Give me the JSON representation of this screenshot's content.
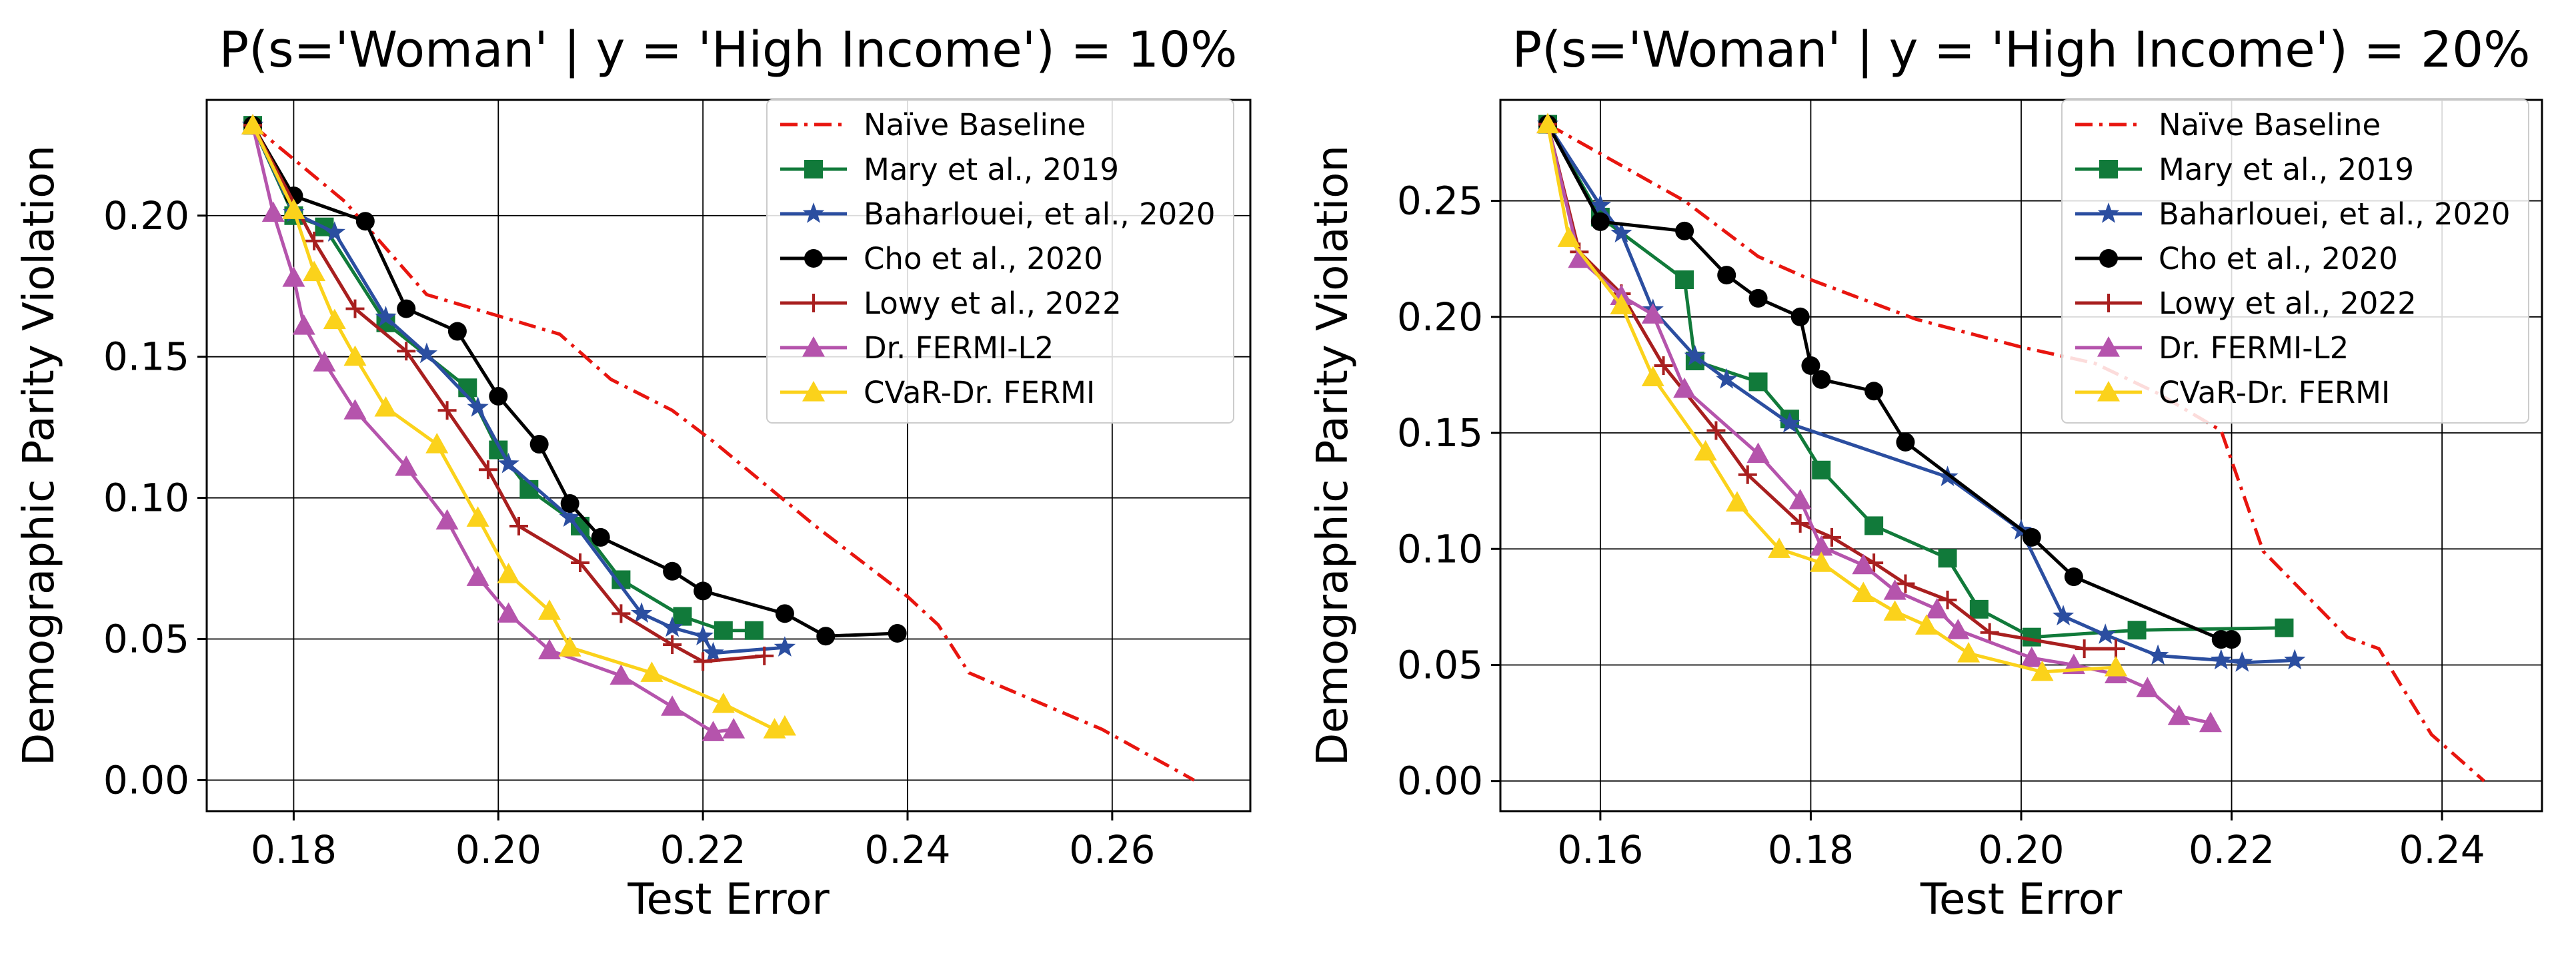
{
  "chart_data": [
    {
      "type": "line",
      "title": "P(s='Woman' | y = 'High Income') = 10%",
      "xlabel": "Test Error",
      "ylabel": "Demographic Parity Violation",
      "xlim": [
        0.1715,
        0.2735
      ],
      "ylim": [
        -0.011,
        0.241
      ],
      "xticks": [
        "0.18",
        "0.20",
        "0.22",
        "0.24",
        "0.26"
      ],
      "yticks": [
        "0.00",
        "0.05",
        "0.10",
        "0.15",
        "0.20"
      ],
      "grid": true,
      "legend_position": "top-right",
      "series": [
        {
          "name": "Naïve Baseline",
          "color": "#e8150f",
          "marker": "none",
          "dash": "dashdot",
          "points": [
            [
              0.176,
              0.232
            ],
            [
              0.185,
              0.205
            ],
            [
              0.193,
              0.172
            ],
            [
              0.206,
              0.158
            ],
            [
              0.211,
              0.142
            ],
            [
              0.217,
              0.131
            ],
            [
              0.221,
              0.12
            ],
            [
              0.231,
              0.09
            ],
            [
              0.24,
              0.065
            ],
            [
              0.243,
              0.055
            ],
            [
              0.246,
              0.038
            ],
            [
              0.259,
              0.018
            ],
            [
              0.268,
              0.0
            ]
          ]
        },
        {
          "name": "Mary et al., 2019",
          "color": "#117a3a",
          "marker": "square",
          "points": [
            [
              0.176,
              0.232
            ],
            [
              0.18,
              0.2
            ],
            [
              0.183,
              0.196
            ],
            [
              0.189,
              0.162
            ],
            [
              0.197,
              0.139
            ],
            [
              0.2,
              0.117
            ],
            [
              0.203,
              0.103
            ],
            [
              0.208,
              0.09
            ],
            [
              0.212,
              0.071
            ],
            [
              0.218,
              0.058
            ],
            [
              0.222,
              0.053
            ],
            [
              0.225,
              0.053
            ]
          ]
        },
        {
          "name": "Baharlouei, et al., 2020",
          "color": "#2b4ea0",
          "marker": "star",
          "points": [
            [
              0.176,
              0.232
            ],
            [
              0.18,
              0.201
            ],
            [
              0.184,
              0.194
            ],
            [
              0.189,
              0.164
            ],
            [
              0.193,
              0.151
            ],
            [
              0.198,
              0.132
            ],
            [
              0.201,
              0.112
            ],
            [
              0.207,
              0.093
            ],
            [
              0.214,
              0.059
            ],
            [
              0.217,
              0.054
            ],
            [
              0.22,
              0.051
            ],
            [
              0.221,
              0.045
            ],
            [
              0.228,
              0.047
            ]
          ]
        },
        {
          "name": "Cho et al., 2020",
          "color": "#000000",
          "marker": "circle",
          "points": [
            [
              0.176,
              0.232
            ],
            [
              0.18,
              0.207
            ],
            [
              0.187,
              0.198
            ],
            [
              0.191,
              0.167
            ],
            [
              0.196,
              0.159
            ],
            [
              0.2,
              0.136
            ],
            [
              0.204,
              0.119
            ],
            [
              0.207,
              0.098
            ],
            [
              0.21,
              0.086
            ],
            [
              0.217,
              0.074
            ],
            [
              0.22,
              0.067
            ],
            [
              0.228,
              0.059
            ],
            [
              0.232,
              0.051
            ],
            [
              0.239,
              0.052
            ]
          ]
        },
        {
          "name": "Lowy et al., 2022",
          "color": "#a81f1f",
          "marker": "plus",
          "points": [
            [
              0.176,
              0.232
            ],
            [
              0.182,
              0.191
            ],
            [
              0.186,
              0.167
            ],
            [
              0.191,
              0.152
            ],
            [
              0.195,
              0.131
            ],
            [
              0.199,
              0.11
            ],
            [
              0.202,
              0.09
            ],
            [
              0.208,
              0.077
            ],
            [
              0.212,
              0.059
            ],
            [
              0.217,
              0.048
            ],
            [
              0.22,
              0.042
            ],
            [
              0.226,
              0.044
            ]
          ]
        },
        {
          "name": "Dr. FERMI-L2",
          "color": "#b554ac",
          "marker": "triangle",
          "points": [
            [
              0.176,
              0.232
            ],
            [
              0.178,
              0.201
            ],
            [
              0.18,
              0.178
            ],
            [
              0.181,
              0.161
            ],
            [
              0.183,
              0.148
            ],
            [
              0.186,
              0.131
            ],
            [
              0.191,
              0.111
            ],
            [
              0.195,
              0.092
            ],
            [
              0.198,
              0.072
            ],
            [
              0.201,
              0.059
            ],
            [
              0.205,
              0.046
            ],
            [
              0.212,
              0.037
            ],
            [
              0.217,
              0.026
            ],
            [
              0.221,
              0.017
            ],
            [
              0.223,
              0.018
            ]
          ]
        },
        {
          "name": "CVaR-Dr. FERMI",
          "color": "#fbd21b",
          "marker": "triangle",
          "points": [
            [
              0.176,
              0.232
            ],
            [
              0.18,
              0.202
            ],
            [
              0.182,
              0.18
            ],
            [
              0.184,
              0.163
            ],
            [
              0.186,
              0.15
            ],
            [
              0.189,
              0.132
            ],
            [
              0.194,
              0.119
            ],
            [
              0.198,
              0.093
            ],
            [
              0.201,
              0.073
            ],
            [
              0.205,
              0.06
            ],
            [
              0.207,
              0.047
            ],
            [
              0.215,
              0.038
            ],
            [
              0.222,
              0.027
            ],
            [
              0.227,
              0.018
            ],
            [
              0.228,
              0.019
            ]
          ]
        }
      ]
    },
    {
      "type": "line",
      "title": "P(s='Woman' | y = 'High Income') = 20%",
      "xlabel": "Test Error",
      "ylabel": "Demographic Parity Violation",
      "xlim": [
        0.1505,
        0.2495
      ],
      "ylim": [
        -0.013,
        0.2935
      ],
      "xticks": [
        "0.16",
        "0.18",
        "0.20",
        "0.22",
        "0.24"
      ],
      "yticks": [
        "0.00",
        "0.05",
        "0.10",
        "0.15",
        "0.20",
        "0.25"
      ],
      "grid": true,
      "legend_position": "top-right",
      "series": [
        {
          "name": "Naïve Baseline",
          "color": "#e8150f",
          "marker": "none",
          "dash": "dashdot",
          "points": [
            [
              0.155,
              0.283
            ],
            [
              0.168,
              0.25
            ],
            [
              0.175,
              0.226
            ],
            [
              0.18,
              0.216
            ],
            [
              0.19,
              0.199
            ],
            [
              0.2,
              0.187
            ],
            [
              0.207,
              0.18
            ],
            [
              0.213,
              0.167
            ],
            [
              0.219,
              0.151
            ],
            [
              0.223,
              0.099
            ],
            [
              0.231,
              0.062
            ],
            [
              0.234,
              0.057
            ],
            [
              0.236,
              0.042
            ],
            [
              0.239,
              0.02
            ],
            [
              0.244,
              0.0
            ]
          ]
        },
        {
          "name": "Mary et al., 2019",
          "color": "#117a3a",
          "marker": "square",
          "points": [
            [
              0.155,
              0.283
            ],
            [
              0.16,
              0.243
            ],
            [
              0.168,
              0.216
            ],
            [
              0.169,
              0.181
            ],
            [
              0.175,
              0.172
            ],
            [
              0.178,
              0.156
            ],
            [
              0.181,
              0.134
            ],
            [
              0.186,
              0.11
            ],
            [
              0.193,
              0.096
            ],
            [
              0.196,
              0.074
            ],
            [
              0.201,
              0.062
            ],
            [
              0.211,
              0.065
            ],
            [
              0.225,
              0.066
            ]
          ]
        },
        {
          "name": "Baharlouei, et al., 2020",
          "color": "#2b4ea0",
          "marker": "star",
          "points": [
            [
              0.155,
              0.283
            ],
            [
              0.16,
              0.248
            ],
            [
              0.162,
              0.236
            ],
            [
              0.165,
              0.203
            ],
            [
              0.169,
              0.183
            ],
            [
              0.172,
              0.173
            ],
            [
              0.178,
              0.154
            ],
            [
              0.193,
              0.131
            ],
            [
              0.2,
              0.108
            ],
            [
              0.204,
              0.071
            ],
            [
              0.208,
              0.063
            ],
            [
              0.213,
              0.054
            ],
            [
              0.219,
              0.052
            ],
            [
              0.221,
              0.051
            ],
            [
              0.226,
              0.052
            ]
          ]
        },
        {
          "name": "Cho et al., 2020",
          "color": "#000000",
          "marker": "circle",
          "points": [
            [
              0.155,
              0.283
            ],
            [
              0.16,
              0.241
            ],
            [
              0.168,
              0.237
            ],
            [
              0.172,
              0.218
            ],
            [
              0.175,
              0.208
            ],
            [
              0.179,
              0.2
            ],
            [
              0.18,
              0.179
            ],
            [
              0.181,
              0.173
            ],
            [
              0.186,
              0.168
            ],
            [
              0.189,
              0.146
            ],
            [
              0.201,
              0.105
            ],
            [
              0.205,
              0.088
            ],
            [
              0.219,
              0.061
            ],
            [
              0.22,
              0.061
            ]
          ]
        },
        {
          "name": "Lowy et al., 2022",
          "color": "#a81f1f",
          "marker": "plus",
          "points": [
            [
              0.155,
              0.283
            ],
            [
              0.158,
              0.228
            ],
            [
              0.162,
              0.21
            ],
            [
              0.166,
              0.179
            ],
            [
              0.171,
              0.151
            ],
            [
              0.174,
              0.132
            ],
            [
              0.179,
              0.111
            ],
            [
              0.182,
              0.105
            ],
            [
              0.186,
              0.094
            ],
            [
              0.189,
              0.085
            ],
            [
              0.193,
              0.078
            ],
            [
              0.197,
              0.064
            ],
            [
              0.206,
              0.057
            ],
            [
              0.209,
              0.057
            ]
          ]
        },
        {
          "name": "Dr. FERMI-L2",
          "color": "#b554ac",
          "marker": "triangle",
          "points": [
            [
              0.155,
              0.283
            ],
            [
              0.158,
              0.225
            ],
            [
              0.162,
              0.209
            ],
            [
              0.165,
              0.201
            ],
            [
              0.168,
              0.169
            ],
            [
              0.175,
              0.141
            ],
            [
              0.179,
              0.121
            ],
            [
              0.181,
              0.101
            ],
            [
              0.185,
              0.093
            ],
            [
              0.188,
              0.082
            ],
            [
              0.192,
              0.074
            ],
            [
              0.194,
              0.065
            ],
            [
              0.201,
              0.053
            ],
            [
              0.205,
              0.05
            ],
            [
              0.209,
              0.046
            ],
            [
              0.212,
              0.04
            ],
            [
              0.215,
              0.028
            ],
            [
              0.218,
              0.025
            ]
          ]
        },
        {
          "name": "CVaR-Dr. FERMI",
          "color": "#fbd21b",
          "marker": "triangle",
          "points": [
            [
              0.155,
              0.283
            ],
            [
              0.157,
              0.234
            ],
            [
              0.162,
              0.205
            ],
            [
              0.165,
              0.174
            ],
            [
              0.17,
              0.142
            ],
            [
              0.173,
              0.12
            ],
            [
              0.177,
              0.1
            ],
            [
              0.181,
              0.094
            ],
            [
              0.185,
              0.081
            ],
            [
              0.188,
              0.073
            ],
            [
              0.191,
              0.067
            ],
            [
              0.195,
              0.055
            ],
            [
              0.202,
              0.047
            ],
            [
              0.209,
              0.049
            ]
          ]
        }
      ]
    }
  ]
}
